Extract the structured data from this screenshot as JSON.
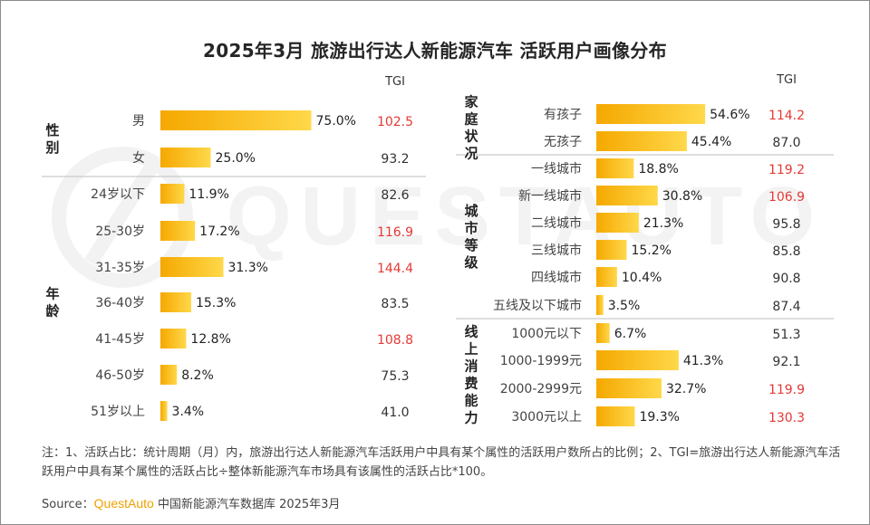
{
  "title": "2025年3月 旅游出行达人新能源汽车 活跃用户画像分布",
  "tgi_header": "TGI",
  "colors": {
    "bar_start": "#f5a800",
    "bar_end": "#ffd84a",
    "tgi_high": "#e53935",
    "tgi_normal": "#333333",
    "brand": "#f0a000",
    "divider": "#bdbdbd"
  },
  "tgi_threshold": 100,
  "chart_data": [
    {
      "type": "bar",
      "orientation": "horizontal",
      "panel": "left",
      "groups": [
        {
          "label": "性别",
          "categories": [
            "男",
            "女"
          ],
          "values": [
            75.0,
            25.0
          ],
          "value_labels": [
            "75.0%",
            "25.0%"
          ],
          "tgi": [
            "102.5",
            "93.2"
          ]
        },
        {
          "label": "年龄",
          "categories": [
            "24岁以下",
            "25-30岁",
            "31-35岁",
            "36-40岁",
            "41-45岁",
            "46-50岁",
            "51岁以上"
          ],
          "values": [
            11.9,
            17.2,
            31.3,
            15.3,
            12.8,
            8.2,
            3.4
          ],
          "value_labels": [
            "11.9%",
            "17.2%",
            "31.3%",
            "15.3%",
            "12.8%",
            "8.2%",
            "3.4%"
          ],
          "tgi": [
            "82.6",
            "116.9",
            "144.4",
            "83.5",
            "108.8",
            "75.3",
            "41.0"
          ]
        }
      ]
    },
    {
      "type": "bar",
      "orientation": "horizontal",
      "panel": "right",
      "groups": [
        {
          "label": "家庭状况",
          "categories": [
            "有孩子",
            "无孩子"
          ],
          "values": [
            54.6,
            45.4
          ],
          "value_labels": [
            "54.6%",
            "45.4%"
          ],
          "tgi": [
            "114.2",
            "87.0"
          ]
        },
        {
          "label": "城市等级",
          "categories": [
            "一线城市",
            "新一线城市",
            "二线城市",
            "三线城市",
            "四线城市",
            "五线及以下城市"
          ],
          "values": [
            18.8,
            30.8,
            21.3,
            15.2,
            10.4,
            3.5
          ],
          "value_labels": [
            "18.8%",
            "30.8%",
            "21.3%",
            "15.2%",
            "10.4%",
            "3.5%"
          ],
          "tgi": [
            "119.2",
            "106.9",
            "95.8",
            "85.8",
            "90.8",
            "87.4"
          ]
        },
        {
          "label": "线上消费能力",
          "categories": [
            "1000元以下",
            "1000-1999元",
            "2000-2999元",
            "3000元以上"
          ],
          "values": [
            6.7,
            41.3,
            32.7,
            19.3
          ],
          "value_labels": [
            "6.7%",
            "41.3%",
            "32.7%",
            "19.3%"
          ],
          "tgi": [
            "51.3",
            "92.1",
            "119.9",
            "130.3"
          ]
        }
      ]
    }
  ],
  "note": "注：1、活跃占比：统计周期（月）内，旅游出行达人新能源汽车活跃用户中具有某个属性的活跃用户数所占的比例；2、TGI=旅游出行达人新能源汽车活跃用户中具有某个属性的活跃占比÷整体新能源汽车市场具有该属性的活跃占比*100。",
  "source": {
    "prefix": "Source：",
    "brand": "QuestAuto",
    "suffix": " 中国新能源汽车数据库 2025年3月"
  },
  "watermark": "QUESTAUTO"
}
